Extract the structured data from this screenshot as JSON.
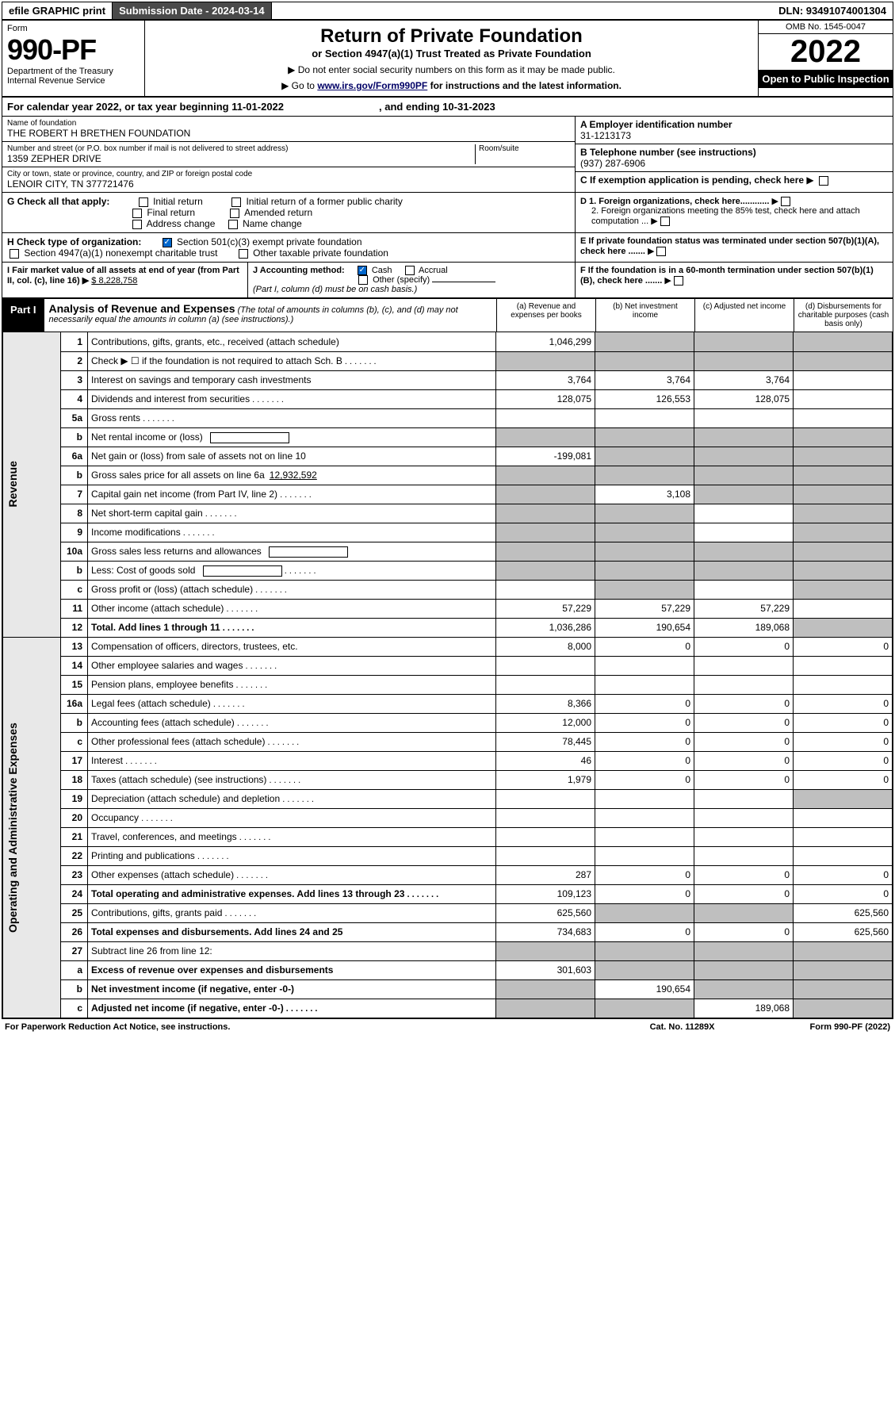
{
  "top": {
    "efile": "efile GRAPHIC print",
    "submission": "Submission Date - 2024-03-14",
    "dln": "DLN: 93491074001304"
  },
  "header": {
    "form_word": "Form",
    "form_no": "990-PF",
    "dept": "Department of the Treasury",
    "irs": "Internal Revenue Service",
    "title": "Return of Private Foundation",
    "subtitle": "or Section 4947(a)(1) Trust Treated as Private Foundation",
    "note1": "▶ Do not enter social security numbers on this form as it may be made public.",
    "note2a": "▶ Go to ",
    "note2link": "www.irs.gov/Form990PF",
    "note2b": " for instructions and the latest information.",
    "omb": "OMB No. 1545-0047",
    "year": "2022",
    "open": "Open to Public Inspection"
  },
  "cal": {
    "a": "For calendar year 2022, or tax year beginning 11-01-2022",
    "b": ", and ending 10-31-2023"
  },
  "id": {
    "name_lbl": "Name of foundation",
    "name": "THE ROBERT H BRETHEN FOUNDATION",
    "addr_lbl": "Number and street (or P.O. box number if mail is not delivered to street address)",
    "addr": "1359 ZEPHER DRIVE",
    "room_lbl": "Room/suite",
    "city_lbl": "City or town, state or province, country, and ZIP or foreign postal code",
    "city": "LENOIR CITY, TN  377721476",
    "a_lbl": "A Employer identification number",
    "a_val": "31-1213173",
    "b_lbl": "B Telephone number (see instructions)",
    "b_val": "(937) 287-6906",
    "c_lbl": "C If exemption application is pending, check here"
  },
  "g": {
    "lbl": "G Check all that apply:",
    "o1": "Initial return",
    "o2": "Initial return of a former public charity",
    "o3": "Final return",
    "o4": "Amended return",
    "o5": "Address change",
    "o6": "Name change"
  },
  "h": {
    "lbl": "H Check type of organization:",
    "o1": "Section 501(c)(3) exempt private foundation",
    "o2": "Section 4947(a)(1) nonexempt charitable trust",
    "o3": "Other taxable private foundation"
  },
  "d": {
    "l1": "D 1. Foreign organizations, check here............",
    "l2": "2. Foreign organizations meeting the 85% test, check here and attach computation ..."
  },
  "e": "E  If private foundation status was terminated under section 507(b)(1)(A), check here .......",
  "i": {
    "lbl": "I Fair market value of all assets at end of year (from Part II, col. (c), line 16) ▶",
    "val": "$  8,228,758"
  },
  "j": {
    "lbl": "J Accounting method:",
    "cash": "Cash",
    "accr": "Accrual",
    "other": "Other (specify)",
    "note": "(Part I, column (d) must be on cash basis.)"
  },
  "f": "F  If the foundation is in a 60-month termination under section 507(b)(1)(B), check here .......",
  "p1": {
    "part": "Part I",
    "title": "Analysis of Revenue and Expenses",
    "sub": " (The total of amounts in columns (b), (c), and (d) may not necessarily equal the amounts in column (a) (see instructions).)",
    "ca": "(a)   Revenue and expenses per books",
    "cb": "(b)   Net investment income",
    "cc": "(c)   Adjusted net income",
    "cd": "(d)   Disbursements for charitable purposes (cash basis only)"
  },
  "side": {
    "rev": "Revenue",
    "exp": "Operating and Administrative Expenses"
  },
  "rows": [
    {
      "n": "1",
      "d": "Contributions, gifts, grants, etc., received (attach schedule)",
      "a": "1,046,299",
      "greyB": true,
      "greyC": true,
      "greyD": true
    },
    {
      "n": "2",
      "d": "Check ▶ ☐ if the foundation is not required to attach Sch. B",
      "dots": true,
      "greyA": true,
      "greyB": true,
      "greyC": true,
      "greyD": true
    },
    {
      "n": "3",
      "d": "Interest on savings and temporary cash investments",
      "a": "3,764",
      "b": "3,764",
      "c": "3,764"
    },
    {
      "n": "4",
      "d": "Dividends and interest from securities",
      "dots": true,
      "a": "128,075",
      "b": "126,553",
      "c": "128,075"
    },
    {
      "n": "5a",
      "d": "Gross rents",
      "dots": true
    },
    {
      "n": "b",
      "d": "Net rental income or (loss)",
      "box": true,
      "greyA": true,
      "greyB": true,
      "greyC": true,
      "greyD": true
    },
    {
      "n": "6a",
      "d": "Net gain or (loss) from sale of assets not on line 10",
      "a": "-199,081",
      "greyB": true,
      "greyC": true,
      "greyD": true
    },
    {
      "n": "b",
      "d": "Gross sales price for all assets on line 6a",
      "val": "12,932,592",
      "greyA": true,
      "greyB": true,
      "greyC": true,
      "greyD": true
    },
    {
      "n": "7",
      "d": "Capital gain net income (from Part IV, line 2)",
      "dots": true,
      "greyA": true,
      "b": "3,108",
      "greyC": true,
      "greyD": true
    },
    {
      "n": "8",
      "d": "Net short-term capital gain",
      "dots": true,
      "greyA": true,
      "greyB": true,
      "greyD": true
    },
    {
      "n": "9",
      "d": "Income modifications",
      "dots": true,
      "greyA": true,
      "greyB": true,
      "greyD": true
    },
    {
      "n": "10a",
      "d": "Gross sales less returns and allowances",
      "box": true,
      "greyA": true,
      "greyB": true,
      "greyC": true,
      "greyD": true
    },
    {
      "n": "b",
      "d": "Less: Cost of goods sold",
      "dots": true,
      "box": true,
      "greyA": true,
      "greyB": true,
      "greyC": true,
      "greyD": true
    },
    {
      "n": "c",
      "d": "Gross profit or (loss) (attach schedule)",
      "dots": true,
      "greyB": true,
      "greyD": true
    },
    {
      "n": "11",
      "d": "Other income (attach schedule)",
      "dots": true,
      "a": "57,229",
      "b": "57,229",
      "c": "57,229"
    },
    {
      "n": "12",
      "d": "Total. Add lines 1 through 11",
      "dots": true,
      "bold": true,
      "a": "1,036,286",
      "b": "190,654",
      "c": "189,068",
      "greyD": true
    },
    {
      "n": "13",
      "d": "Compensation of officers, directors, trustees, etc.",
      "a": "8,000",
      "b": "0",
      "c": "0",
      "dd": "0"
    },
    {
      "n": "14",
      "d": "Other employee salaries and wages",
      "dots": true
    },
    {
      "n": "15",
      "d": "Pension plans, employee benefits",
      "dots": true
    },
    {
      "n": "16a",
      "d": "Legal fees (attach schedule)",
      "dots": true,
      "a": "8,366",
      "b": "0",
      "c": "0",
      "dd": "0"
    },
    {
      "n": "b",
      "d": "Accounting fees (attach schedule)",
      "dots": true,
      "a": "12,000",
      "b": "0",
      "c": "0",
      "dd": "0"
    },
    {
      "n": "c",
      "d": "Other professional fees (attach schedule)",
      "dots": true,
      "a": "78,445",
      "b": "0",
      "c": "0",
      "dd": "0"
    },
    {
      "n": "17",
      "d": "Interest",
      "dots": true,
      "a": "46",
      "b": "0",
      "c": "0",
      "dd": "0"
    },
    {
      "n": "18",
      "d": "Taxes (attach schedule) (see instructions)",
      "dots": true,
      "a": "1,979",
      "b": "0",
      "c": "0",
      "dd": "0"
    },
    {
      "n": "19",
      "d": "Depreciation (attach schedule) and depletion",
      "dots": true,
      "greyD": true
    },
    {
      "n": "20",
      "d": "Occupancy",
      "dots": true
    },
    {
      "n": "21",
      "d": "Travel, conferences, and meetings",
      "dots": true
    },
    {
      "n": "22",
      "d": "Printing and publications",
      "dots": true
    },
    {
      "n": "23",
      "d": "Other expenses (attach schedule)",
      "dots": true,
      "a": "287",
      "b": "0",
      "c": "0",
      "dd": "0"
    },
    {
      "n": "24",
      "d": "Total operating and administrative expenses. Add lines 13 through 23",
      "dots": true,
      "bold": true,
      "a": "109,123",
      "b": "0",
      "c": "0",
      "dd": "0"
    },
    {
      "n": "25",
      "d": "Contributions, gifts, grants paid",
      "dots": true,
      "a": "625,560",
      "greyB": true,
      "greyC": true,
      "dd": "625,560"
    },
    {
      "n": "26",
      "d": "Total expenses and disbursements. Add lines 24 and 25",
      "bold": true,
      "a": "734,683",
      "b": "0",
      "c": "0",
      "dd": "625,560"
    },
    {
      "n": "27",
      "d": "Subtract line 26 from line 12:",
      "greyA": true,
      "greyB": true,
      "greyC": true,
      "greyD": true
    },
    {
      "n": "a",
      "d": "Excess of revenue over expenses and disbursements",
      "bold": true,
      "a": "301,603",
      "greyB": true,
      "greyC": true,
      "greyD": true
    },
    {
      "n": "b",
      "d": "Net investment income (if negative, enter -0-)",
      "bold": true,
      "greyA": true,
      "b": "190,654",
      "greyC": true,
      "greyD": true
    },
    {
      "n": "c",
      "d": "Adjusted net income (if negative, enter -0-)",
      "dots": true,
      "bold": true,
      "greyA": true,
      "greyB": true,
      "c": "189,068",
      "greyD": true
    }
  ],
  "foot": {
    "a": "For Paperwork Reduction Act Notice, see instructions.",
    "b": "Cat. No. 11289X",
    "c": "Form 990-PF (2022)"
  }
}
